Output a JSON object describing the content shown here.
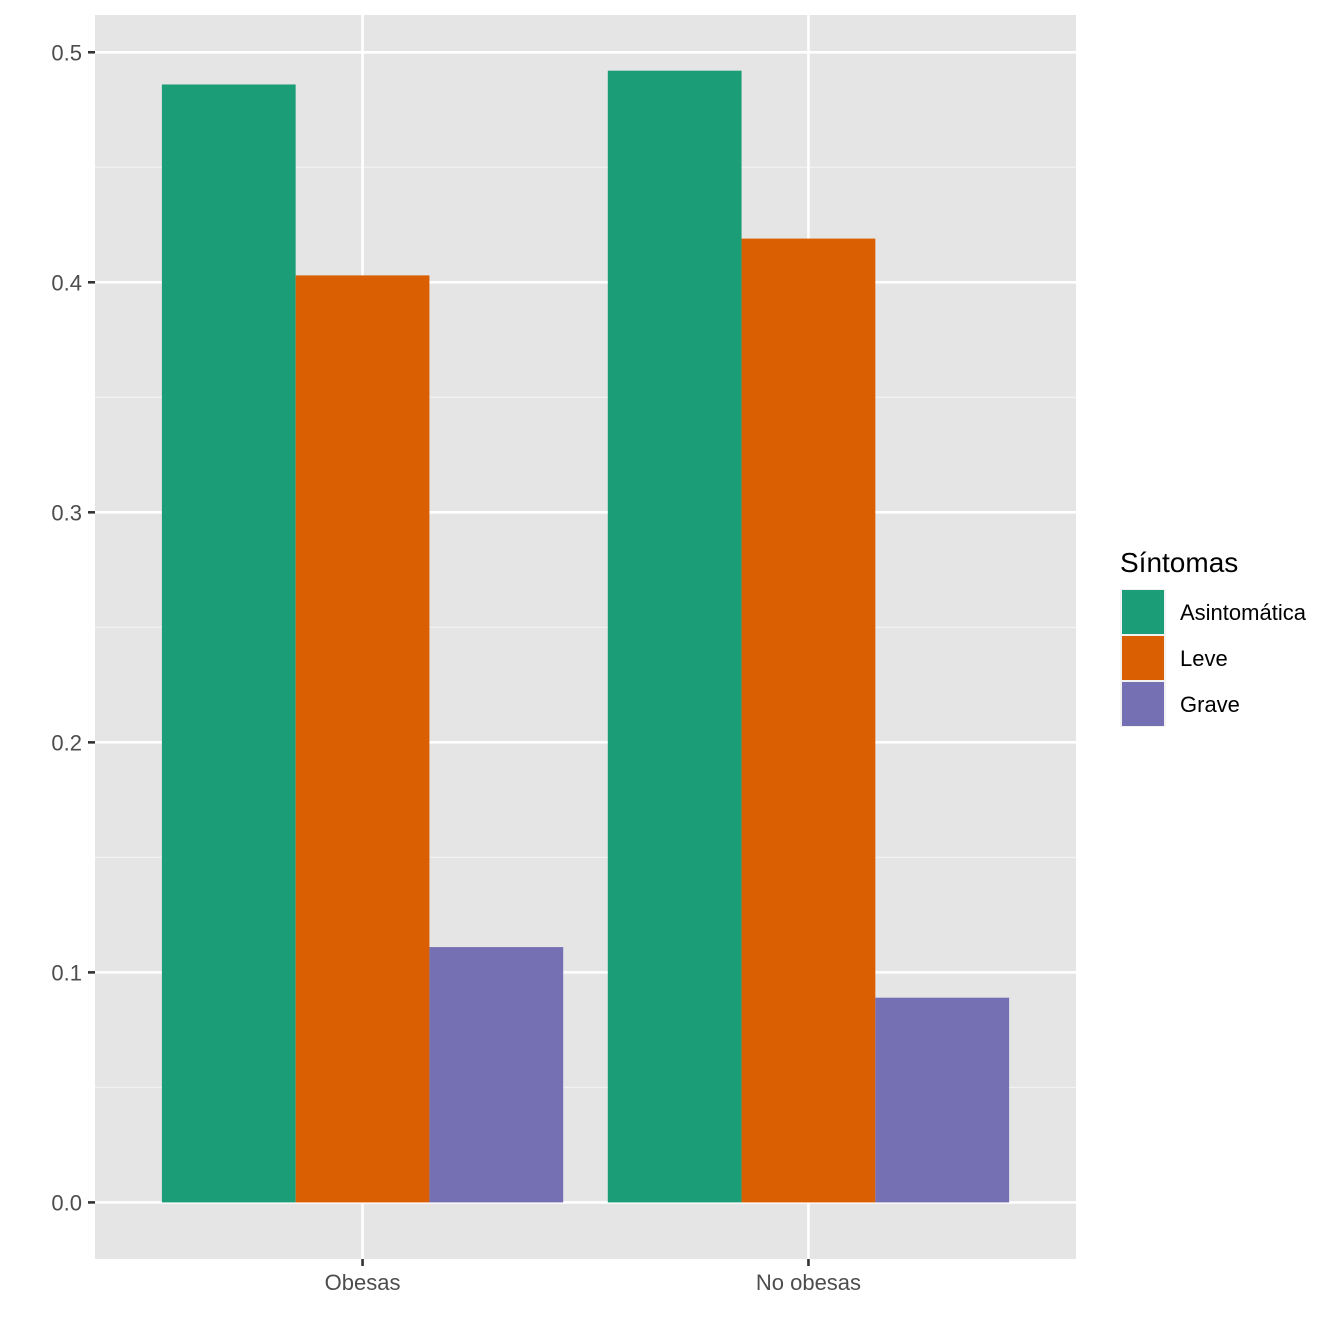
{
  "chart_data": {
    "type": "bar",
    "categories": [
      "Obesas",
      "No obesas"
    ],
    "series": [
      {
        "name": "Asintomática",
        "color": "#1b9e77",
        "values": [
          0.486,
          0.492
        ]
      },
      {
        "name": "Leve",
        "color": "#d95f02",
        "values": [
          0.403,
          0.419
        ]
      },
      {
        "name": "Grave",
        "color": "#7570b3",
        "values": [
          0.111,
          0.089
        ]
      }
    ],
    "title": "",
    "xlabel": "",
    "ylabel": "",
    "ylim": [
      -0.0246,
      0.5162
    ],
    "yticks": [
      0.0,
      0.1,
      0.2,
      0.3,
      0.4,
      0.5
    ],
    "ytick_labels": [
      "0.0",
      "0.1",
      "0.2",
      "0.3",
      "0.4",
      "0.5"
    ],
    "grid": true,
    "panel_background": "#e5e5e5",
    "legend": {
      "title": "Síntomas",
      "position": "right"
    }
  }
}
